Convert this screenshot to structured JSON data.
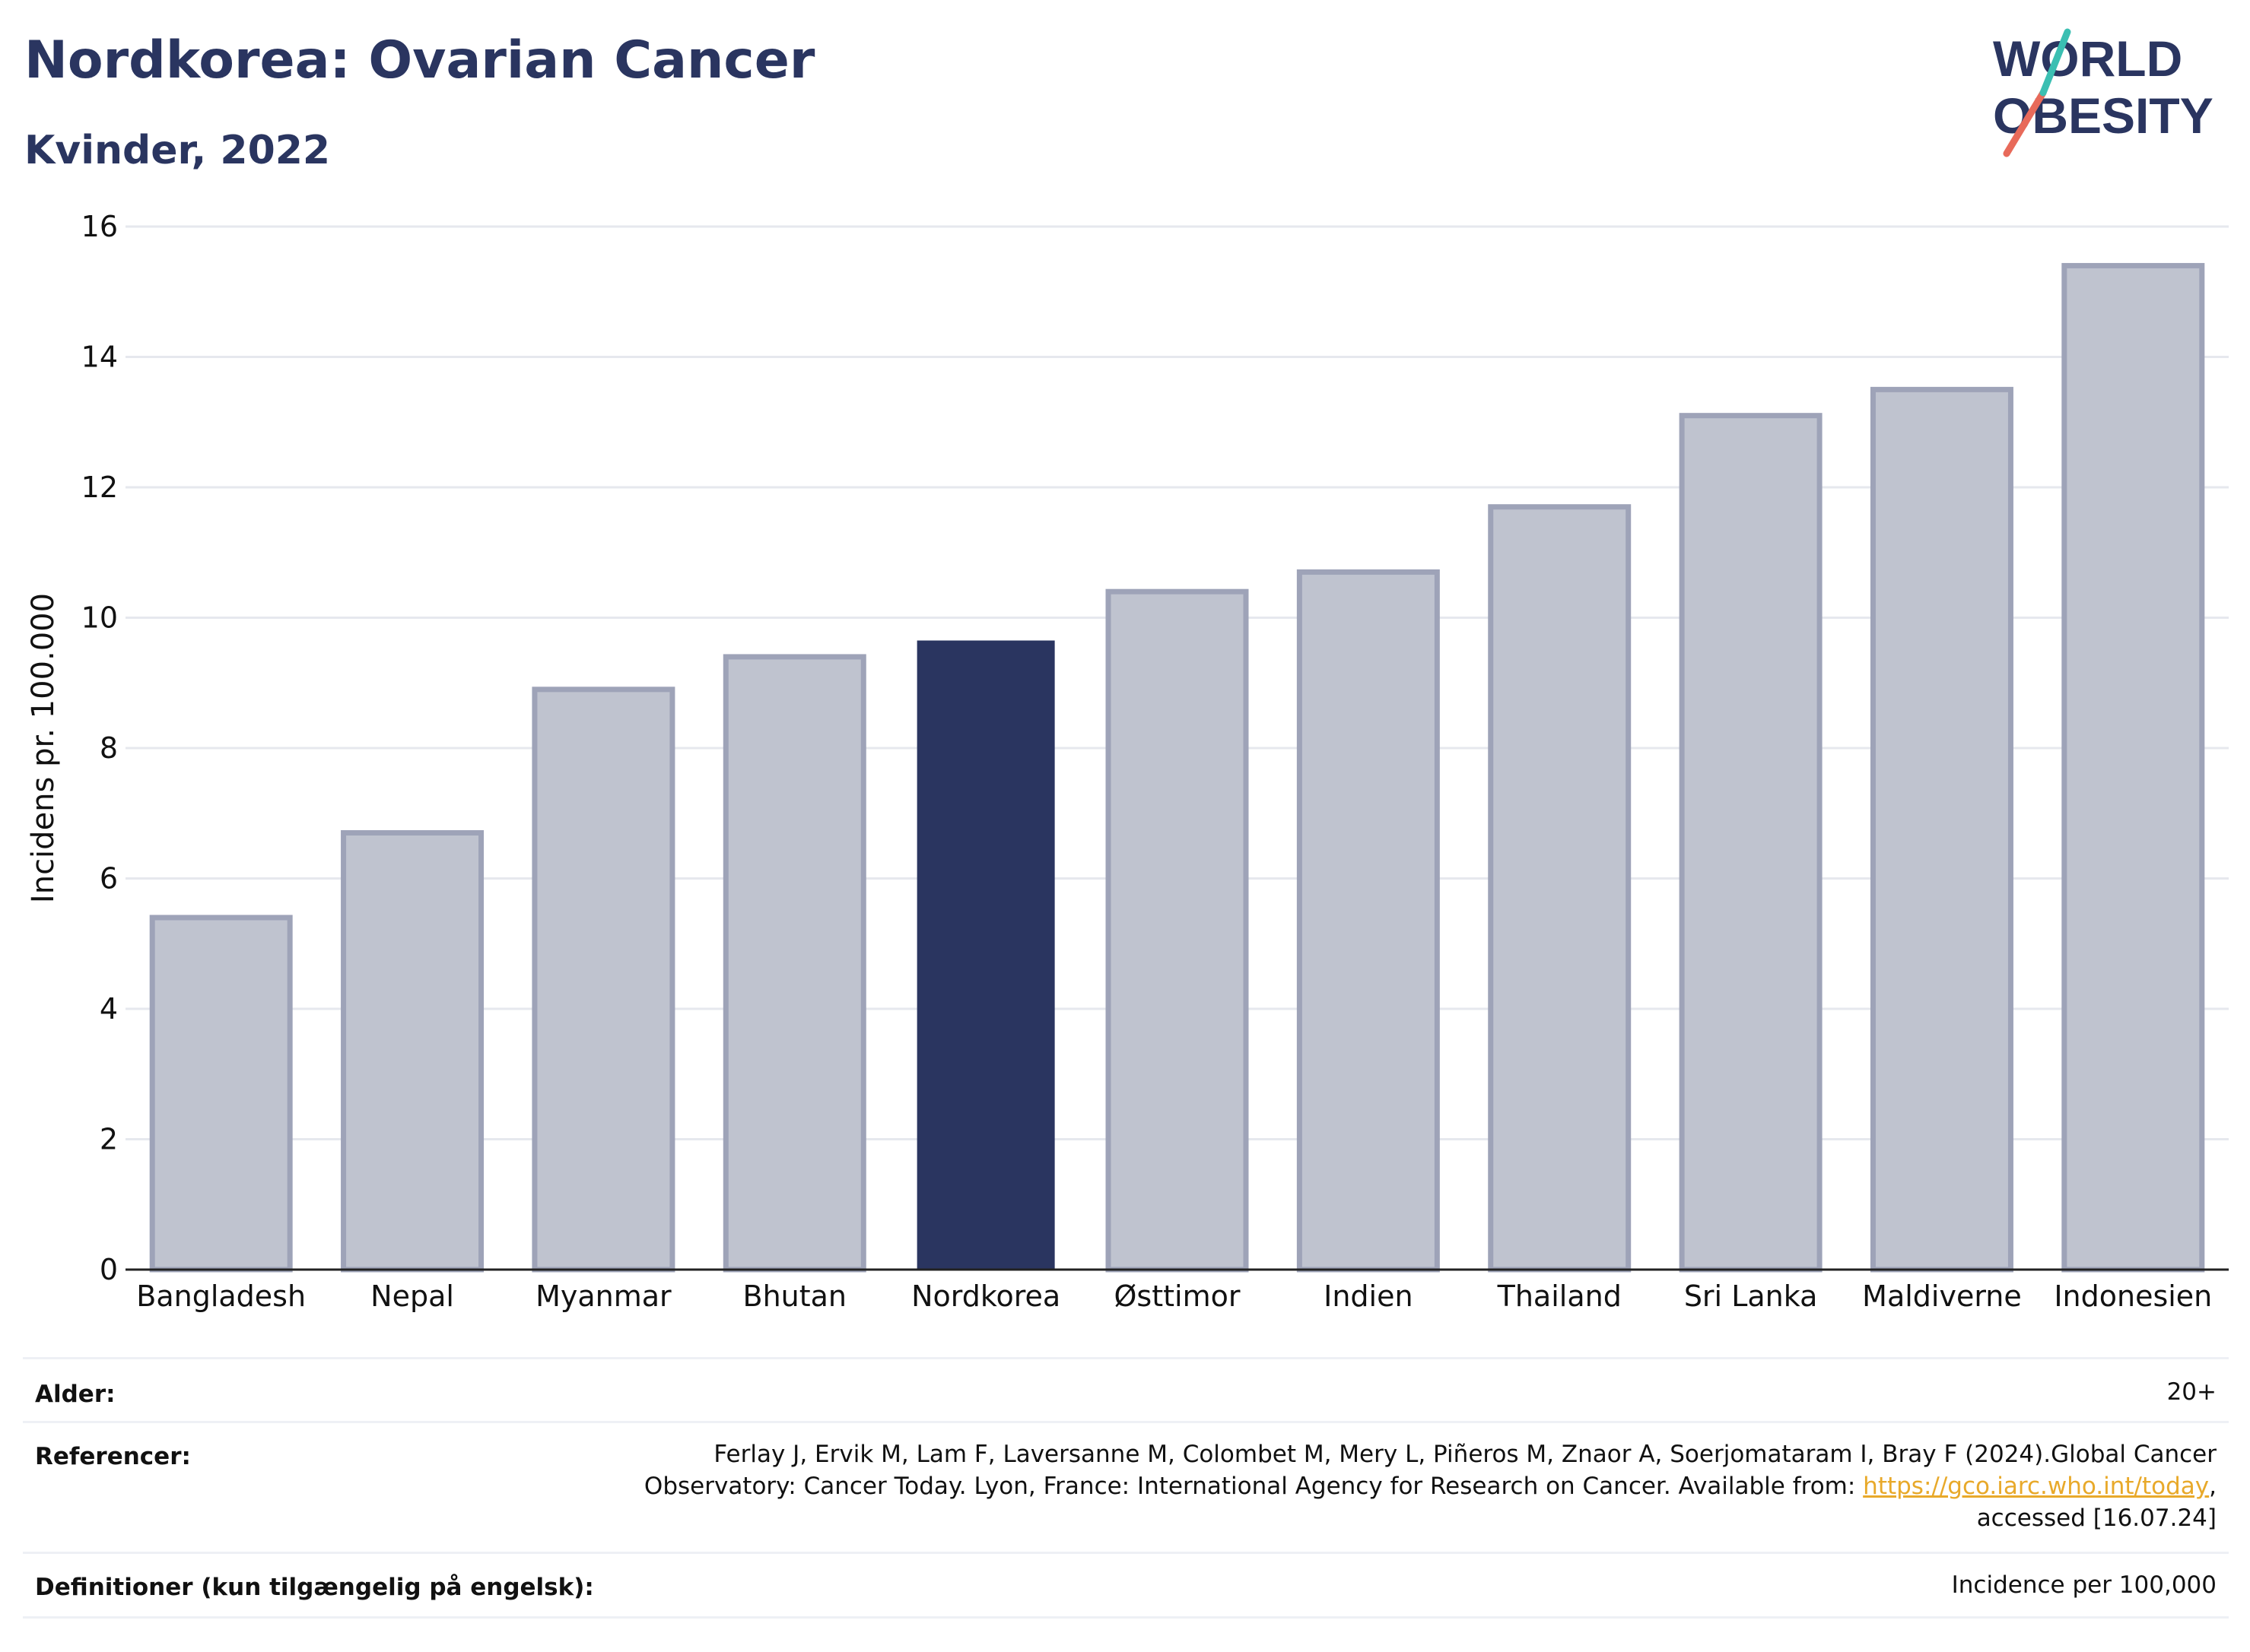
{
  "header": {
    "title": "Nordkorea: Ovarian Cancer",
    "subtitle": "Kvinder, 2022"
  },
  "logo": {
    "line1": "WORLD",
    "line2": "OBESITY",
    "text_color": "#2a3560",
    "slash_colors": [
      "#e86a5a",
      "#3bbfb2"
    ]
  },
  "colors": {
    "highlight_bar": "#2a3560",
    "other_bar": "#bfc3cf",
    "other_bar_border": "#9ea3b8",
    "gridline": "#e6e8ee",
    "link": "#e8a92a"
  },
  "chart_data": {
    "type": "bar",
    "ylabel": "Incidens pr. 100.000",
    "xlabel": "",
    "ylim": [
      0,
      16
    ],
    "yticks": [
      0,
      2,
      4,
      6,
      8,
      10,
      12,
      14,
      16
    ],
    "grid": true,
    "categories": [
      "Bangladesh",
      "Nepal",
      "Myanmar",
      "Bhutan",
      "Nordkorea",
      "Østtimor",
      "Indien",
      "Thailand",
      "Sri Lanka",
      "Maldiverne",
      "Indonesien"
    ],
    "values": [
      5.4,
      6.7,
      8.9,
      9.4,
      9.65,
      10.4,
      10.7,
      11.7,
      13.1,
      13.5,
      15.4
    ],
    "highlight": "Nordkorea"
  },
  "meta": {
    "age_label": "Alder:",
    "age_value": "20+",
    "refs_label": "Referencer:",
    "refs_line1": "Ferlay J, Ervik M, Lam F, Laversanne M, Colombet M, Mery L, Piñeros M, Znaor A, Soerjomataram I, Bray F (2024).Global Cancer",
    "refs_line2_prefix": "Observatory: Cancer Today. Lyon, France: International Agency for Research on Cancer. Available from: ",
    "refs_link": "https://gco.iarc.who.int/today",
    "refs_line2_suffix": ",",
    "refs_line3": "accessed [16.07.24]",
    "defs_label": "Definitioner (kun tilgængelig på engelsk):",
    "defs_value": "Incidence per 100,000"
  }
}
